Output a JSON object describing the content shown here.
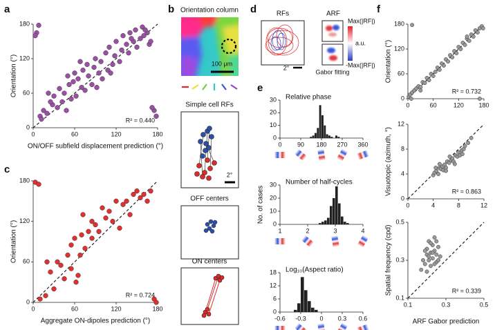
{
  "panel_labels": [
    "a",
    "b",
    "c",
    "d",
    "e",
    "f"
  ],
  "orientation_column": {
    "title": "Orientation column",
    "scale": "100 μm"
  },
  "simple_cell_rfs": {
    "title": "Simple cell RFs",
    "scale": "2°"
  },
  "off_centers": {
    "title": "OFF centers"
  },
  "on_centers": {
    "title": "ON centers"
  },
  "rfs": {
    "title": "RFs",
    "scale": "2°"
  },
  "arf": {
    "title": "ARF",
    "max": "Max(|RF|)",
    "unit": "a.u.",
    "min": "-Max(|RF|)",
    "caption": "Gabor fitting"
  },
  "chart_data": [
    {
      "type": "scatter",
      "xlabel": "ON/OFF subfield displacement prediction (°)",
      "ylabel": "Orientation (°)",
      "annotation": "R² = 0.440",
      "color": "#9b4fa5",
      "x": [
        5,
        8,
        3,
        10,
        15,
        20,
        22,
        28,
        30,
        35,
        38,
        42,
        45,
        48,
        52,
        55,
        58,
        60,
        62,
        65,
        70,
        72,
        75,
        78,
        80,
        85,
        88,
        90,
        95,
        98,
        100,
        105,
        108,
        110,
        115,
        118,
        120,
        125,
        128,
        130,
        135,
        138,
        140,
        145,
        148,
        150,
        155,
        158,
        160,
        165,
        168,
        170,
        175,
        178,
        172,
        12,
        25,
        50,
        68,
        92,
        112,
        142,
        162
      ],
      "y": [
        165,
        178,
        160,
        20,
        30,
        25,
        60,
        40,
        55,
        35,
        68,
        45,
        60,
        30,
        75,
        50,
        80,
        95,
        55,
        85,
        70,
        100,
        65,
        110,
        90,
        75,
        105,
        120,
        95,
        115,
        85,
        130,
        100,
        140,
        110,
        125,
        150,
        115,
        135,
        160,
        145,
        130,
        165,
        150,
        170,
        140,
        155,
        175,
        160,
        165,
        145,
        150,
        30,
        20,
        35,
        15,
        45,
        90,
        115,
        70,
        95,
        155,
        170
      ],
      "xlim": [
        0,
        180
      ],
      "ylim": [
        0,
        180
      ],
      "xticks": [
        0,
        60,
        120,
        180
      ],
      "yticks": [
        0,
        60,
        120,
        180
      ]
    },
    {
      "type": "scatter",
      "xlabel": "Aggregate ON-dipoles prediction (°)",
      "ylabel": "Orientation (°)",
      "annotation": "R² = 0.724",
      "color": "#e03030",
      "x": [
        3,
        8,
        10,
        18,
        25,
        30,
        35,
        40,
        45,
        50,
        55,
        60,
        62,
        65,
        68,
        70,
        72,
        75,
        80,
        85,
        90,
        95,
        100,
        105,
        110,
        115,
        120,
        125,
        130,
        135,
        140,
        145,
        150,
        155,
        160,
        165,
        170,
        175,
        178,
        20,
        55,
        85
      ],
      "y": [
        178,
        175,
        5,
        10,
        45,
        20,
        60,
        55,
        35,
        70,
        85,
        95,
        30,
        40,
        70,
        100,
        130,
        80,
        105,
        120,
        115,
        105,
        140,
        125,
        135,
        120,
        150,
        110,
        145,
        150,
        130,
        160,
        165,
        155,
        160,
        150,
        165,
        5,
        0,
        60,
        50,
        95
      ],
      "xlim": [
        0,
        180
      ],
      "ylim": [
        0,
        180
      ],
      "xticks": [
        0,
        60,
        120,
        180
      ],
      "yticks": [
        0,
        60,
        120,
        180
      ]
    },
    {
      "type": "histogram",
      "title": "Relative phase",
      "color": "#222",
      "bins": [
        0,
        10,
        20,
        30,
        40,
        50,
        60,
        70,
        80,
        90,
        100,
        110,
        120,
        130,
        140,
        150,
        160,
        170,
        180,
        190,
        200,
        210,
        220,
        230,
        240,
        250,
        260,
        270,
        280,
        290,
        300,
        310,
        320,
        330,
        340,
        350,
        360
      ],
      "counts": [
        0,
        0,
        0,
        0,
        0,
        0,
        0,
        0,
        0,
        0,
        0,
        0,
        0,
        1,
        2,
        4,
        8,
        26,
        18,
        10,
        3,
        2,
        1,
        0,
        2,
        1,
        0,
        0,
        0,
        0,
        0,
        0,
        0,
        0,
        0,
        0
      ],
      "xlim": [
        0,
        360
      ],
      "ylim": [
        0,
        30
      ],
      "xticks": [
        0,
        90,
        180,
        270,
        360
      ],
      "yticks": [
        0,
        10,
        20,
        30
      ]
    },
    {
      "type": "histogram",
      "title": "Number of half-cycles",
      "ylabel": "No. of cases",
      "color": "#222",
      "bins": [
        1,
        1.1,
        1.2,
        1.3,
        1.4,
        1.5,
        1.6,
        1.7,
        1.8,
        1.9,
        2,
        2.1,
        2.2,
        2.3,
        2.4,
        2.5,
        2.6,
        2.7,
        2.8,
        2.9,
        3,
        3.1,
        3.2,
        3.3,
        3.4,
        3.5,
        3.6,
        3.7,
        3.8,
        3.9,
        4
      ],
      "counts": [
        0,
        0,
        0,
        0,
        0,
        0,
        0,
        0,
        0,
        0,
        0,
        0,
        0,
        0,
        1,
        2,
        3,
        5,
        14,
        20,
        29,
        16,
        6,
        2,
        1,
        0,
        0,
        0,
        0,
        0
      ],
      "xlim": [
        1,
        4
      ],
      "ylim": [
        0,
        30
      ],
      "xticks": [
        1,
        2,
        3,
        4
      ],
      "yticks": [
        0,
        10,
        20,
        30
      ]
    },
    {
      "type": "histogram",
      "title": "Log₁₀(Aspect ratio)",
      "color": "#222",
      "bins": [
        -0.6,
        -0.55,
        -0.5,
        -0.45,
        -0.4,
        -0.35,
        -0.3,
        -0.25,
        -0.2,
        -0.15,
        -0.1,
        -0.05,
        0,
        0.05,
        0.1,
        0.15,
        0.2,
        0.25,
        0.3,
        0.35,
        0.4,
        0.45,
        0.5,
        0.55,
        0.6
      ],
      "counts": [
        0,
        0,
        0,
        0,
        1,
        4,
        16,
        10,
        5,
        2,
        1,
        0,
        0,
        0,
        0,
        0,
        0,
        0,
        0,
        0,
        0,
        0,
        0,
        0
      ],
      "xlim": [
        -0.6,
        0.6
      ],
      "ylim": [
        0,
        18
      ],
      "xticks": [
        -0.6,
        -0.3,
        0,
        0.3,
        0.6
      ],
      "yticks": [
        0,
        6,
        12,
        18
      ]
    },
    {
      "type": "scatter",
      "ylabel": "Orientation (°)",
      "annotation": "R² = 0.732",
      "color": "#999999",
      "x": [
        2,
        5,
        8,
        10,
        15,
        20,
        25,
        30,
        35,
        40,
        45,
        50,
        55,
        60,
        65,
        70,
        75,
        80,
        85,
        90,
        95,
        100,
        105,
        110,
        115,
        120,
        125,
        130,
        135,
        140,
        145,
        150,
        155,
        160,
        165,
        170,
        175,
        178,
        10,
        170,
        30,
        140
      ],
      "y": [
        5,
        10,
        0,
        15,
        20,
        25,
        30,
        28,
        40,
        38,
        50,
        45,
        60,
        55,
        65,
        75,
        70,
        85,
        80,
        95,
        90,
        105,
        100,
        115,
        110,
        125,
        120,
        135,
        130,
        145,
        140,
        155,
        150,
        165,
        160,
        170,
        175,
        170,
        178,
        0,
        20,
        150
      ],
      "xlim": [
        0,
        180
      ],
      "ylim": [
        0,
        180
      ],
      "xticks": [
        0,
        60,
        120,
        180
      ],
      "yticks": [
        0,
        60,
        120,
        180
      ]
    },
    {
      "type": "scatter",
      "ylabel": "Visuotopic (azimuth, °)",
      "annotation": "R² = 0.863",
      "color": "#999999",
      "x": [
        4,
        4.2,
        4.5,
        4.8,
        5,
        5.2,
        5.5,
        5.8,
        6,
        6.2,
        6.5,
        6.8,
        7,
        7.2,
        7.5,
        7.8,
        8,
        8.2,
        8.5,
        8.8,
        9,
        9.5,
        10,
        4.4,
        5.6,
        6.6,
        7.4,
        8.6,
        5,
        6
      ],
      "y": [
        3.8,
        4.2,
        4.5,
        4,
        5,
        4.8,
        5.2,
        5.5,
        5,
        6,
        5.8,
        6.2,
        6.5,
        6,
        7,
        6.8,
        7.5,
        7,
        7.8,
        8,
        8.5,
        9,
        9.8,
        5,
        4.6,
        6.8,
        5.6,
        7.2,
        5.6,
        4.5
      ],
      "xlim": [
        0,
        12
      ],
      "ylim": [
        0,
        12
      ],
      "xticks": [
        0,
        4,
        8,
        12
      ],
      "yticks": [
        0,
        4,
        8,
        12
      ]
    },
    {
      "type": "scatter",
      "xlabel": "ARF Gabor prediction",
      "ylabel": "Spatial frequency (cpd)",
      "annotation": "R² = 0.339",
      "color": "#999999",
      "x": [
        0.17,
        0.18,
        0.19,
        0.2,
        0.2,
        0.21,
        0.21,
        0.22,
        0.22,
        0.23,
        0.23,
        0.24,
        0.24,
        0.25,
        0.25,
        0.26,
        0.27,
        0.19,
        0.22,
        0.24,
        0.2,
        0.23,
        0.25,
        0.21,
        0.26
      ],
      "y": [
        0.25,
        0.3,
        0.28,
        0.33,
        0.36,
        0.3,
        0.4,
        0.34,
        0.27,
        0.38,
        0.31,
        0.35,
        0.42,
        0.33,
        0.29,
        0.37,
        0.32,
        0.35,
        0.39,
        0.28,
        0.24,
        0.34,
        0.4,
        0.32,
        0.3
      ],
      "xlim": [
        0.1,
        0.5
      ],
      "ylim": [
        0.1,
        0.5
      ],
      "xticks": [
        0.1,
        0.3,
        0.5
      ],
      "yticks": [
        0.1,
        0.3,
        0.5
      ]
    }
  ]
}
